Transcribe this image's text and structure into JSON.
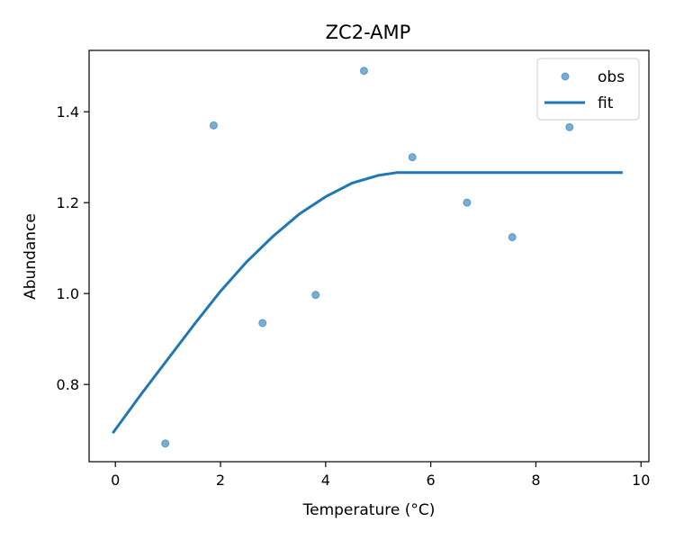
{
  "chart_data": {
    "type": "scatter",
    "title": "ZC2-AMP",
    "xlabel": "Temperature (°C)",
    "ylabel": "Abundance",
    "xlim": [
      -0.5,
      10.15
    ],
    "ylim": [
      0.63,
      1.535
    ],
    "xticks": [
      0,
      2,
      4,
      6,
      8,
      10
    ],
    "yticks": [
      0.8,
      1.0,
      1.2,
      1.4
    ],
    "grid": false,
    "legend_position": "top-right",
    "series": [
      {
        "name": "obs",
        "kind": "scatter",
        "color": "#1f77b4",
        "x": [
          0.95,
          1.87,
          2.8,
          3.81,
          4.73,
          5.65,
          6.69,
          7.55,
          8.64
        ],
        "y": [
          0.67,
          1.37,
          0.935,
          0.997,
          1.49,
          1.3,
          1.2,
          1.124,
          1.366
        ]
      },
      {
        "name": "fit",
        "kind": "line",
        "color": "#1f77b4",
        "x": [
          -0.05,
          0.5,
          1.0,
          1.5,
          2.0,
          2.5,
          3.0,
          3.5,
          4.0,
          4.5,
          5.0,
          5.35,
          6.0,
          7.0,
          8.0,
          9.0,
          9.65
        ],
        "y": [
          0.693,
          0.78,
          0.856,
          0.932,
          1.005,
          1.07,
          1.126,
          1.175,
          1.213,
          1.243,
          1.26,
          1.266,
          1.266,
          1.266,
          1.266,
          1.266,
          1.266
        ]
      }
    ]
  }
}
